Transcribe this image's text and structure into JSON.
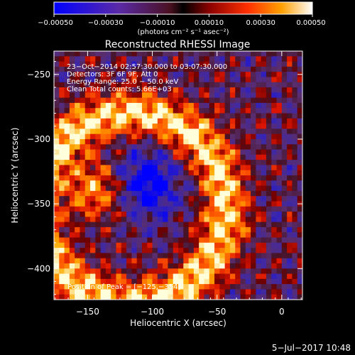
{
  "chart_data": {
    "type": "heatmap",
    "title": "Reconstructed RHESSI Image",
    "xlabel": "Heliocentric X (arcsec)",
    "ylabel": "Heliocentric Y (arcsec)",
    "xlim": [
      -176,
      16
    ],
    "ylim": [
      -424,
      -232
    ],
    "x_ticks": [
      -150,
      -100,
      -50,
      0
    ],
    "x_tick_labels": [
      "−150",
      "−100",
      "−50",
      "0"
    ],
    "y_ticks": [
      -400,
      -350,
      -300,
      -250
    ],
    "y_tick_labels": [
      "−400",
      "−350",
      "−300",
      "−250"
    ],
    "colorbar": {
      "range": [
        -0.0005,
        0.0005
      ],
      "ticks": [
        -0.0005,
        -0.0003,
        -0.0001,
        0.0001,
        0.0003,
        0.0005
      ],
      "tick_labels": [
        "−0.00050",
        "−0.00030",
        "−0.00010",
        "0.00010",
        "0.00030",
        "0.00050"
      ],
      "unit_label": "(photons cm⁻² s⁻¹ asec⁻²)"
    },
    "annotations": [
      "23−Oct−2014 02:57:30.000 to 03:07:30.000",
      "Detectors: 3F 6F 9F, Att 0",
      "Energy Range: 25.0 − 50.0 keV",
      "Clean    Total counts: 5.66E+03"
    ],
    "peak_label": "Position of Peak = [−125,−354]",
    "peak_position": [
      -125,
      -354
    ],
    "timestamp": "5−Jul−2017 10:48"
  }
}
